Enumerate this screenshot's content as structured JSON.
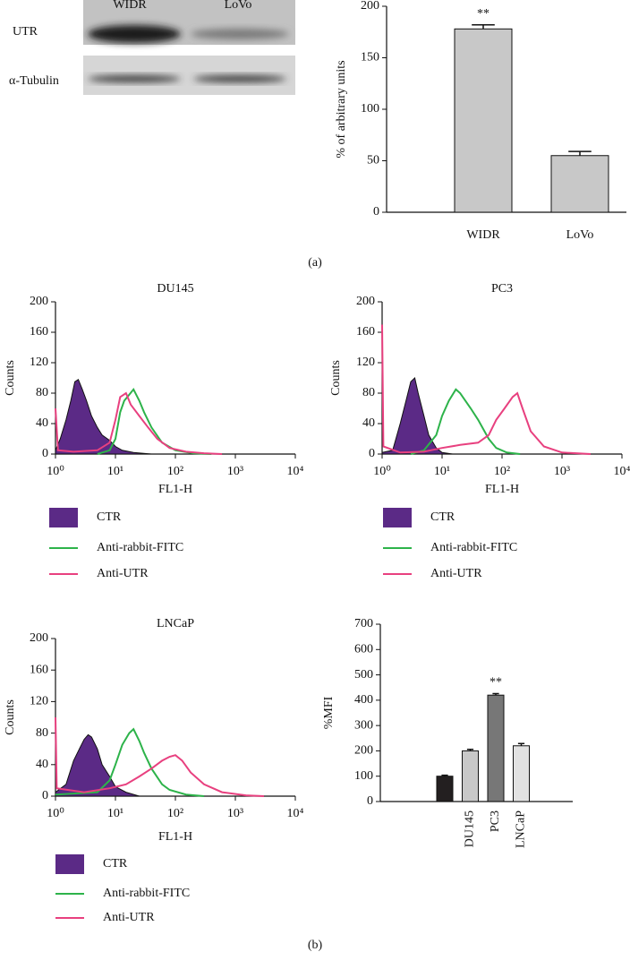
{
  "blot": {
    "columns": [
      "WIDR",
      "LoVo"
    ],
    "rows": [
      "UTR",
      "α-Tubulin"
    ]
  },
  "panel_labels": [
    "(a)",
    "(b)"
  ],
  "chart_data": [
    {
      "type": "bar",
      "ylabel": "% of arbitrary units",
      "categories": [
        "WIDR",
        "LoVo"
      ],
      "values": [
        178,
        55
      ],
      "errors": [
        4,
        4
      ],
      "value_annotations": [
        "**",
        null
      ],
      "color": "#c8c8c8",
      "ylim": [
        0,
        200
      ],
      "yticks": [
        0,
        50,
        100,
        150,
        200
      ],
      "grid": false
    },
    {
      "type": "line",
      "title": "DU145",
      "xlabel": "FL1-H",
      "ylabel": "Counts",
      "xscale": "log",
      "xlim": [
        1,
        10000
      ],
      "xticks": [
        {
          "value": 1,
          "label": "10⁰"
        },
        {
          "value": 10,
          "label": "10¹"
        },
        {
          "value": 100,
          "label": "10²"
        },
        {
          "value": 1000,
          "label": "10³"
        },
        {
          "value": 10000,
          "label": "10⁴"
        }
      ],
      "ylim": [
        0,
        200
      ],
      "yticks": [
        0,
        40,
        80,
        120,
        160,
        200
      ],
      "legend": "below",
      "series": [
        {
          "name": "CTR",
          "color": "#5b2a86",
          "fill": true,
          "x": [
            1,
            1.2,
            1.5,
            1.8,
            2.1,
            2.4,
            2.8,
            3.3,
            4,
            5,
            6,
            8,
            10,
            13,
            20,
            40
          ],
          "values": [
            5,
            20,
            45,
            70,
            95,
            98,
            85,
            70,
            50,
            35,
            25,
            18,
            10,
            5,
            2,
            0
          ]
        },
        {
          "name": "Anti-rabbit-FITC",
          "color": "#2db34a",
          "fill": false,
          "x": [
            5,
            8,
            10,
            12,
            14,
            17,
            20,
            25,
            30,
            40,
            60,
            100,
            200,
            400
          ],
          "values": [
            0,
            5,
            20,
            55,
            70,
            78,
            85,
            70,
            55,
            35,
            15,
            5,
            1,
            0
          ]
        },
        {
          "name": "Anti-UTR",
          "color": "#e8407f",
          "fill": false,
          "x": [
            1,
            1.1,
            2,
            5,
            8,
            10,
            12,
            15,
            18,
            25,
            35,
            50,
            80,
            150,
            300,
            600
          ],
          "values": [
            60,
            5,
            3,
            5,
            15,
            45,
            75,
            80,
            65,
            50,
            35,
            20,
            8,
            3,
            1,
            0
          ]
        }
      ]
    },
    {
      "type": "line",
      "title": "PC3",
      "xlabel": "FL1-H",
      "ylabel": "Counts",
      "xscale": "log",
      "xlim": [
        1,
        10000
      ],
      "xticks": [
        {
          "value": 1,
          "label": "10⁰"
        },
        {
          "value": 10,
          "label": "10¹"
        },
        {
          "value": 100,
          "label": "10²"
        },
        {
          "value": 1000,
          "label": "10³"
        },
        {
          "value": 10000,
          "label": "10⁴"
        }
      ],
      "ylim": [
        0,
        200
      ],
      "yticks": [
        0,
        40,
        80,
        120,
        160,
        200
      ],
      "legend": "below",
      "series": [
        {
          "name": "CTR",
          "color": "#5b2a86",
          "fill": true,
          "x": [
            1,
            1.5,
            2,
            2.5,
            3,
            3.5,
            4,
            5,
            6,
            8,
            10,
            15
          ],
          "values": [
            2,
            5,
            40,
            70,
            95,
            100,
            80,
            50,
            25,
            8,
            2,
            0
          ]
        },
        {
          "name": "Anti-rabbit-FITC",
          "color": "#2db34a",
          "fill": false,
          "x": [
            3,
            5,
            8,
            10,
            13,
            17,
            20,
            30,
            40,
            60,
            80,
            120,
            200
          ],
          "values": [
            0,
            5,
            25,
            50,
            70,
            85,
            80,
            60,
            45,
            20,
            8,
            2,
            0
          ]
        },
        {
          "name": "Anti-UTR",
          "color": "#e8407f",
          "fill": false,
          "x": [
            1,
            1.05,
            2,
            5,
            10,
            20,
            40,
            60,
            80,
            110,
            150,
            180,
            220,
            300,
            500,
            1000,
            3000
          ],
          "values": [
            170,
            10,
            2,
            3,
            8,
            12,
            15,
            25,
            45,
            60,
            75,
            80,
            60,
            30,
            10,
            2,
            0
          ]
        }
      ]
    },
    {
      "type": "line",
      "title": "LNCaP",
      "xlabel": "FL1-H",
      "ylabel": "Counts",
      "xscale": "log",
      "xlim": [
        1,
        10000
      ],
      "xticks": [
        {
          "value": 1,
          "label": "10⁰"
        },
        {
          "value": 10,
          "label": "10¹"
        },
        {
          "value": 100,
          "label": "10²"
        },
        {
          "value": 1000,
          "label": "10³"
        },
        {
          "value": 10000,
          "label": "10⁴"
        }
      ],
      "ylim": [
        0,
        200
      ],
      "yticks": [
        0,
        40,
        80,
        120,
        160,
        200
      ],
      "legend": "below",
      "series": [
        {
          "name": "CTR",
          "color": "#5b2a86",
          "fill": true,
          "x": [
            1,
            1.5,
            2,
            2.5,
            3,
            3.5,
            4,
            5,
            6,
            8,
            10,
            15,
            25
          ],
          "values": [
            5,
            15,
            45,
            60,
            72,
            78,
            75,
            60,
            40,
            25,
            12,
            5,
            0
          ]
        },
        {
          "name": "Anti-rabbit-FITC",
          "color": "#2db34a",
          "fill": false,
          "x": [
            1,
            5,
            8,
            10,
            13,
            17,
            20,
            25,
            30,
            40,
            60,
            80,
            150,
            300
          ],
          "values": [
            2,
            5,
            20,
            40,
            65,
            80,
            85,
            70,
            55,
            35,
            15,
            8,
            2,
            0
          ]
        },
        {
          "name": "Anti-UTR",
          "color": "#e8407f",
          "fill": false,
          "x": [
            1,
            1.05,
            3,
            8,
            15,
            25,
            40,
            60,
            80,
            100,
            130,
            180,
            300,
            600,
            1500,
            3000
          ],
          "values": [
            100,
            10,
            5,
            10,
            15,
            25,
            35,
            45,
            50,
            52,
            45,
            30,
            15,
            5,
            1,
            0
          ]
        }
      ]
    },
    {
      "type": "bar",
      "ylabel": "%MFI",
      "categories": [
        null,
        "DU145",
        "PC3",
        "LNCaP"
      ],
      "values": [
        100,
        200,
        420,
        220
      ],
      "errors": [
        4,
        6,
        6,
        9
      ],
      "value_annotations": [
        null,
        null,
        "**",
        null
      ],
      "colors": [
        "#231f20",
        "#c8c8c8",
        "#777777",
        "#e2e2e2"
      ],
      "ylim": [
        0,
        700
      ],
      "yticks": [
        0,
        100,
        200,
        300,
        400,
        500,
        600,
        700
      ],
      "grid": false
    }
  ]
}
